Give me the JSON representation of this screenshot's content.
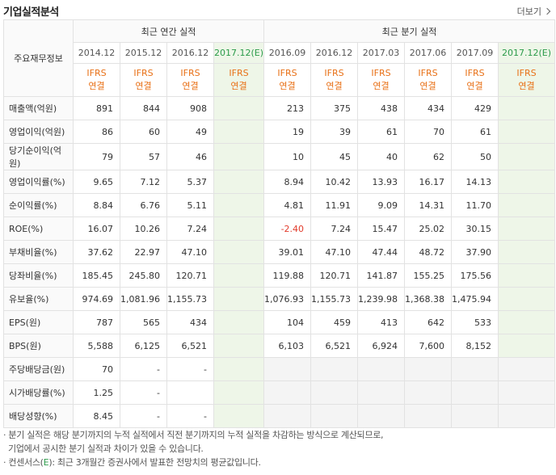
{
  "section": {
    "title": "기업실적분석",
    "more": "더보기"
  },
  "header": {
    "row_label": "주요재무정보",
    "annual_group": "최근 연간 실적",
    "quarter_group": "최근 분기 실적",
    "annual_periods": [
      "2014.12",
      "2015.12",
      "2016.12",
      "2017.12(E)"
    ],
    "quarter_periods": [
      "2016.09",
      "2016.12",
      "2017.03",
      "2017.06",
      "2017.09",
      "2017.12(E)"
    ],
    "basis_top": "IFRS",
    "basis_bottom": "연결"
  },
  "rows": [
    {
      "label": "매출액(억원)",
      "annual": [
        "891",
        "844",
        "908",
        ""
      ],
      "quarter": [
        "213",
        "375",
        "438",
        "434",
        "429",
        ""
      ]
    },
    {
      "label": "영업이익(억원)",
      "annual": [
        "86",
        "60",
        "49",
        ""
      ],
      "quarter": [
        "19",
        "39",
        "61",
        "70",
        "61",
        ""
      ]
    },
    {
      "label": "당기순이익(억원)",
      "annual": [
        "79",
        "57",
        "46",
        ""
      ],
      "quarter": [
        "10",
        "45",
        "40",
        "62",
        "50",
        ""
      ]
    },
    {
      "label": "영업이익률(%)",
      "annual": [
        "9.65",
        "7.12",
        "5.37",
        ""
      ],
      "quarter": [
        "8.94",
        "10.42",
        "13.93",
        "16.17",
        "14.13",
        ""
      ]
    },
    {
      "label": "순이익률(%)",
      "annual": [
        "8.84",
        "6.76",
        "5.11",
        ""
      ],
      "quarter": [
        "4.81",
        "11.91",
        "9.09",
        "14.31",
        "11.70",
        ""
      ]
    },
    {
      "label": "ROE(%)",
      "annual": [
        "16.07",
        "10.26",
        "7.24",
        ""
      ],
      "quarter": [
        "-2.40",
        "7.24",
        "15.47",
        "25.02",
        "30.15",
        ""
      ]
    },
    {
      "label": "부채비율(%)",
      "annual": [
        "37.62",
        "22.97",
        "47.10",
        ""
      ],
      "quarter": [
        "39.01",
        "47.10",
        "47.44",
        "48.72",
        "37.90",
        ""
      ]
    },
    {
      "label": "당좌비율(%)",
      "annual": [
        "185.45",
        "245.80",
        "120.71",
        ""
      ],
      "quarter": [
        "119.88",
        "120.71",
        "141.87",
        "155.25",
        "175.56",
        ""
      ]
    },
    {
      "label": "유보율(%)",
      "annual": [
        "974.69",
        "1,081.96",
        "1,155.73",
        ""
      ],
      "quarter": [
        "1,076.93",
        "1,155.73",
        "1,239.98",
        "1,368.38",
        "1,475.94",
        ""
      ]
    },
    {
      "label": "EPS(원)",
      "annual": [
        "787",
        "565",
        "434",
        ""
      ],
      "quarter": [
        "104",
        "459",
        "413",
        "642",
        "533",
        ""
      ]
    },
    {
      "label": "BPS(원)",
      "annual": [
        "5,588",
        "6,125",
        "6,521",
        ""
      ],
      "quarter": [
        "6,103",
        "6,521",
        "6,924",
        "7,600",
        "8,152",
        ""
      ]
    },
    {
      "label": "주당배당금(원)",
      "annual": [
        "70",
        "-",
        "-",
        ""
      ],
      "quarter": [
        "",
        "",
        "",
        "",
        "",
        ""
      ]
    },
    {
      "label": "시가배당률(%)",
      "annual": [
        "1.25",
        "-",
        "",
        ""
      ],
      "quarter": [
        "",
        "",
        "",
        "",
        "",
        ""
      ]
    },
    {
      "label": "배당성향(%)",
      "annual": [
        "8.45",
        "-",
        "-",
        ""
      ],
      "quarter": [
        "",
        "",
        "",
        "",
        "",
        ""
      ]
    }
  ],
  "notes": {
    "line1": "· 분기 실적은 해당 분기까지의 누적 실적에서 직전 분기까지의 누적 실적을 차감하는 방식으로 계산되므로,",
    "line2": "기업에서 공시한 분기 실적과 차이가 있을 수 있습니다.",
    "line3_prefix": "· 컨센서스(",
    "line3_e": "E",
    "line3_suffix": "): 최근 3개월간 증권사에서 발표한 전망치의 평균값입니다."
  },
  "colors": {
    "estimate_text": "#2b9b4a",
    "estimate_bg": "#eef6e8",
    "basis_text": "#e87016",
    "negative": "#e23b2b"
  }
}
